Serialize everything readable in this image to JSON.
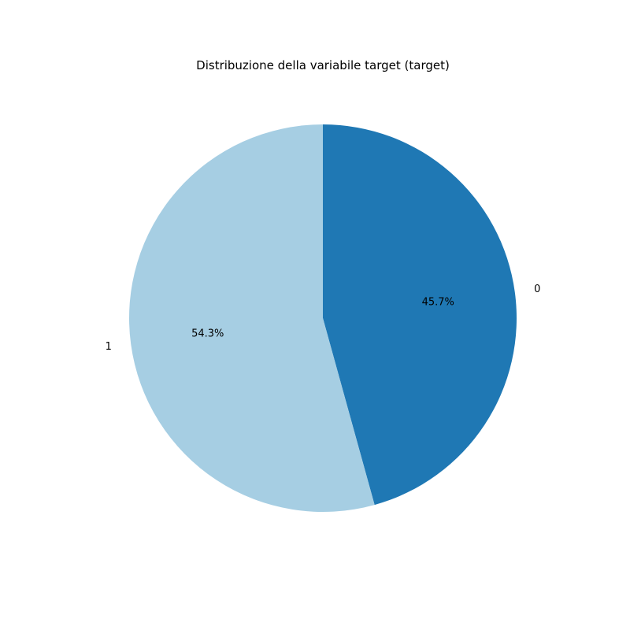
{
  "chart_data": {
    "type": "pie",
    "title": "Distribuzione della variabile target (target)",
    "slices": [
      {
        "label": "0",
        "value": 45.7,
        "pct_label": "45.7%",
        "color": "#1f78b4"
      },
      {
        "label": "1",
        "value": 54.3,
        "pct_label": "54.3%",
        "color": "#a6cee3"
      }
    ],
    "start_angle_deg": 90,
    "direction": "clockwise",
    "legend": "none"
  }
}
